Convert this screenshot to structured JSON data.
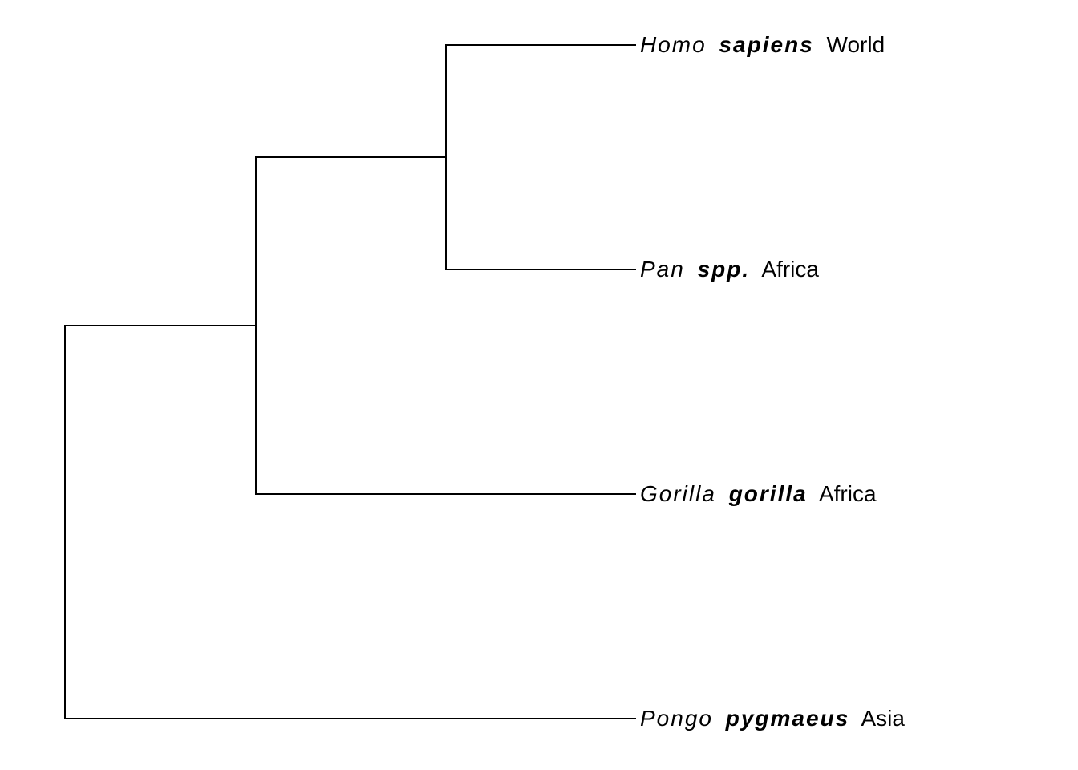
{
  "tree": {
    "tips": [
      {
        "genus": "Homo",
        "species": "sapiens",
        "region": "World"
      },
      {
        "genus": "Pan",
        "species": "spp.",
        "region": "Africa"
      },
      {
        "genus": "Gorilla",
        "species": "gorilla",
        "region": "Africa"
      },
      {
        "genus": "Pongo",
        "species": "pygmaeus",
        "region": "Asia"
      }
    ],
    "topology": "(((Homo sapiens, Pan spp.), Gorilla gorilla), Pongo pygmaeus)"
  }
}
